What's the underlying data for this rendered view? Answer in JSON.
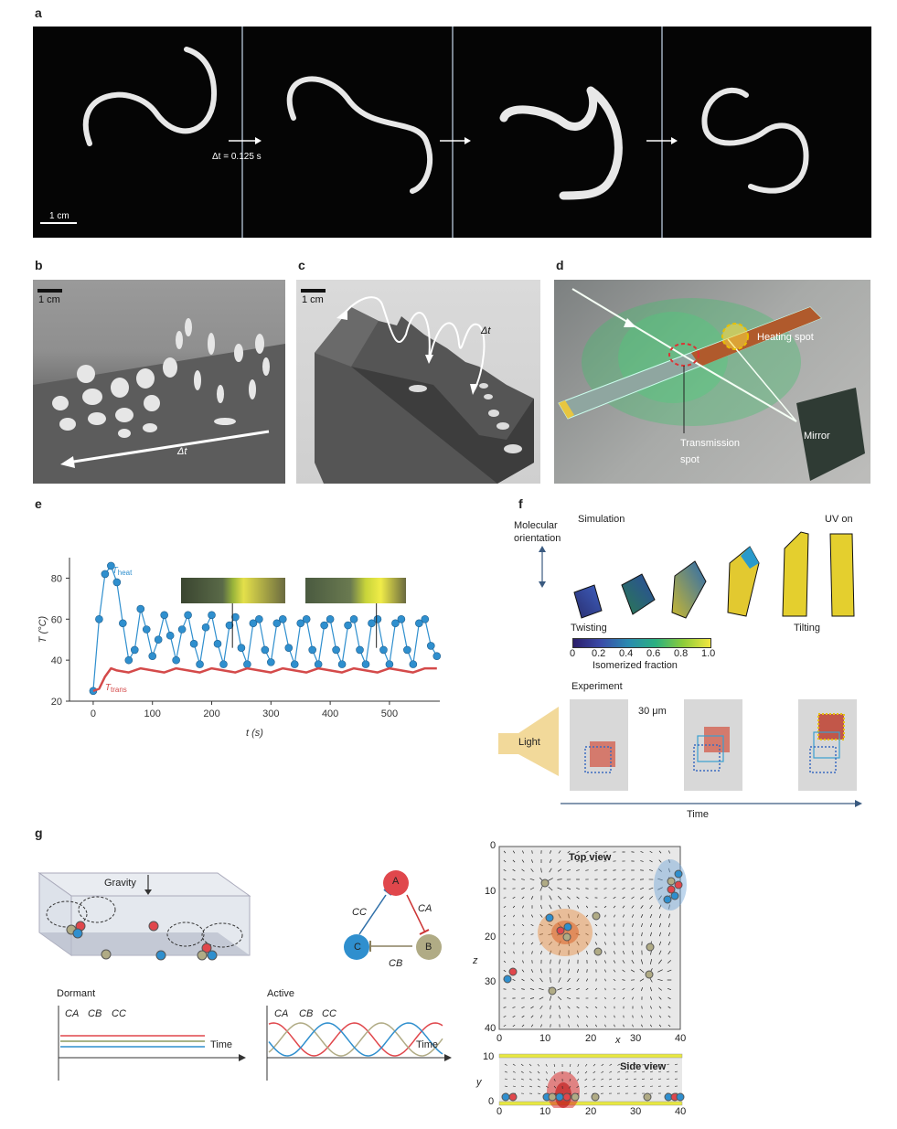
{
  "panels": {
    "a": "a",
    "b": "b",
    "c": "c",
    "d": "d",
    "e": "e",
    "f": "f",
    "g": "g"
  },
  "panel_a": {
    "dt": "Δt = 0.125 s",
    "scale": "1 cm"
  },
  "panel_b": {
    "scale": "1 cm",
    "dt": "Δt"
  },
  "panel_c": {
    "scale": "1 cm",
    "dt": "Δt"
  },
  "panel_d": {
    "heating": "Heating spot",
    "transmission_1": "Transmission",
    "transmission_2": "spot",
    "mirror": "Mirror"
  },
  "panel_f": {
    "mol_1": "Molecular",
    "mol_2": "orientation",
    "simulation": "Simulation",
    "uv": "UV on",
    "twisting": "Twisting",
    "tilting": "Tilting",
    "cbar_ticks": [
      "0",
      "0.2",
      "0.4",
      "0.6",
      "0.8",
      "1.0"
    ],
    "cbar_label": "Isomerized fraction",
    "experiment": "Experiment",
    "scale": "30 μm",
    "light": "Light",
    "time": "Time"
  },
  "panel_g": {
    "gravity": "Gravity",
    "node_a": "A",
    "node_b": "B",
    "node_c": "C",
    "ca": "CA",
    "cb": "CB",
    "cc": "CC",
    "dormant": "Dormant",
    "active": "Active",
    "time": "Time",
    "top_view": "Top view",
    "side_view": "Side view",
    "top_x_ticks": [
      "0",
      "10",
      "20",
      "30",
      "40"
    ],
    "top_z_ticks": [
      "0",
      "10",
      "20",
      "30",
      "40"
    ],
    "side_y_ticks": [
      "10",
      "0"
    ],
    "side_x_ticks": [
      "0",
      "10",
      "20",
      "30",
      "40"
    ],
    "x_label": "x",
    "z_label": "z",
    "y_label": "y"
  },
  "colors": {
    "heat": "#2f8fce",
    "trans": "#d44a4a",
    "a": "#e0474c",
    "b": "#b0ab85",
    "c": "#2f8fce"
  },
  "chart_data": {
    "type": "line",
    "xlabel": "t (s)",
    "ylabel": "T (°C)",
    "xlim": [
      -40,
      585
    ],
    "ylim": [
      20,
      90
    ],
    "x_ticks": [
      0,
      100,
      200,
      300,
      400,
      500
    ],
    "y_ticks": [
      20,
      40,
      60,
      80
    ],
    "series": [
      {
        "name": "T_heat",
        "label_main": "T",
        "label_sub": "heat",
        "x": [
          0,
          10,
          20,
          30,
          40,
          50,
          60,
          70,
          80,
          90,
          100,
          110,
          120,
          130,
          140,
          150,
          160,
          170,
          180,
          190,
          200,
          210,
          220,
          230,
          240,
          250,
          260,
          270,
          280,
          290,
          300,
          310,
          320,
          330,
          340,
          350,
          360,
          370,
          380,
          390,
          400,
          410,
          420,
          430,
          440,
          450,
          460,
          470,
          480,
          490,
          500,
          510,
          520,
          530,
          540,
          550,
          560,
          570,
          580
        ],
        "y": [
          25,
          60,
          82,
          86,
          78,
          58,
          40,
          45,
          65,
          55,
          42,
          50,
          62,
          52,
          40,
          55,
          62,
          48,
          38,
          56,
          62,
          48,
          38,
          57,
          61,
          46,
          38,
          58,
          60,
          45,
          39,
          58,
          60,
          46,
          38,
          58,
          60,
          45,
          38,
          57,
          60,
          45,
          38,
          57,
          60,
          45,
          38,
          58,
          60,
          45,
          38,
          58,
          60,
          45,
          38,
          58,
          60,
          47,
          42
        ]
      },
      {
        "name": "T_trans",
        "label_main": "T",
        "label_sub": "trans",
        "x": [
          0,
          10,
          20,
          30,
          40,
          60,
          80,
          100,
          120,
          140,
          160,
          180,
          200,
          220,
          240,
          260,
          280,
          300,
          320,
          340,
          360,
          380,
          400,
          420,
          440,
          460,
          480,
          500,
          520,
          540,
          560,
          580
        ],
        "y": [
          25,
          26,
          32,
          36,
          35,
          34,
          36,
          35,
          34,
          36,
          35,
          34,
          36,
          35,
          34,
          36,
          35,
          34,
          36,
          35,
          34,
          36,
          35,
          34,
          36,
          35,
          34,
          36,
          35,
          34,
          36,
          36
        ]
      }
    ]
  }
}
